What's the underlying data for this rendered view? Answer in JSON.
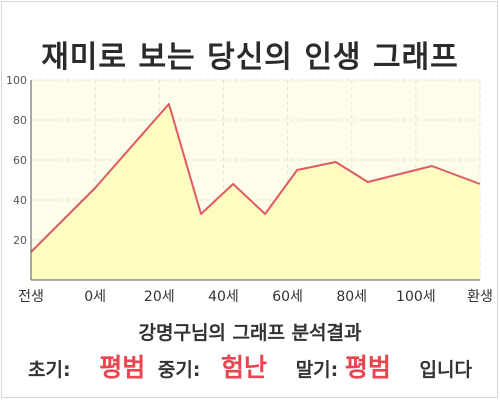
{
  "page": {
    "title": "재미로 보는 당신의 인생 그래프"
  },
  "colors": {
    "line": "#e05a63",
    "fill": "#fffcc2",
    "plot_bg": "#fefde9",
    "grid": "#e8e4c8",
    "axis": "#555555",
    "verdict": "#e8464e"
  },
  "chart_data": {
    "type": "area",
    "x_tick_labels": [
      {
        "x": 0,
        "label": "전생"
      },
      {
        "x": 10,
        "label": "0세"
      },
      {
        "x": 20,
        "label": "20세"
      },
      {
        "x": 30,
        "label": "40세"
      },
      {
        "x": 40,
        "label": "60세"
      },
      {
        "x": 50,
        "label": "80세"
      },
      {
        "x": 60,
        "label": "100세"
      },
      {
        "x": 70,
        "label": "환생"
      }
    ],
    "xlim": [
      0,
      70
    ],
    "ylim": [
      0,
      100
    ],
    "y_ticks": [
      20,
      40,
      60,
      80,
      100
    ],
    "grid": true,
    "series": [
      {
        "x": [
          0,
          10,
          21.5,
          26.5,
          31.5,
          36.5,
          41.5,
          47.5,
          52.5,
          62.5,
          70
        ],
        "y": [
          14,
          46,
          88,
          33,
          48,
          33,
          55,
          59,
          49,
          57,
          48
        ]
      }
    ]
  },
  "result": {
    "heading": "강명구님의 그래프 분석결과",
    "early_label": "초기:",
    "early_value": "평범",
    "middle_label": "중기:",
    "middle_value": "험난",
    "late_label": "말기:",
    "late_value": "평범",
    "suffix": "입니다"
  }
}
